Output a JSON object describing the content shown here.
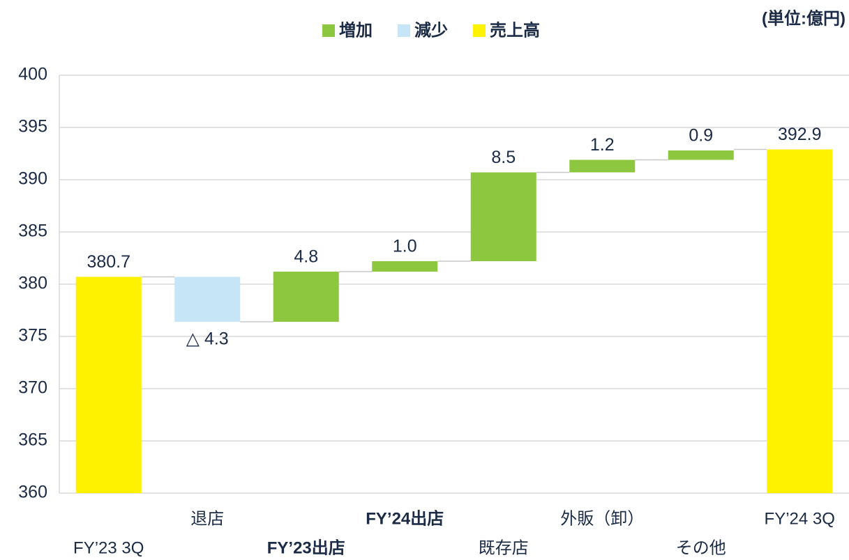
{
  "chart_data": {
    "type": "waterfall",
    "unit_label": "(単位:億円)",
    "categories": [
      "FY’23 3Q",
      "退店",
      "FY’23出店",
      "FY’24出店",
      "既存店",
      "外販（卸）",
      "その他",
      "FY’24 3Q"
    ],
    "series": [
      {
        "name": "増加",
        "color": "#8dc63f",
        "values": [
          null,
          null,
          4.8,
          1.0,
          8.5,
          1.2,
          0.9,
          null
        ],
        "value_labels": [
          null,
          null,
          "4.8",
          "1.0",
          "8.5",
          "1.2",
          "0.9",
          null
        ]
      },
      {
        "name": "減少",
        "color": "#c6e6f8",
        "values": [
          null,
          -4.3,
          null,
          null,
          null,
          null,
          null,
          null
        ],
        "value_labels": [
          null,
          "△ 4.3",
          null,
          null,
          null,
          null,
          null,
          null
        ]
      },
      {
        "name": "売上高",
        "color": "#fff200",
        "values": [
          380.7,
          null,
          null,
          null,
          null,
          null,
          null,
          392.9
        ],
        "value_labels": [
          "380.7",
          null,
          null,
          null,
          null,
          null,
          null,
          "392.9"
        ]
      }
    ],
    "ylim": [
      360,
      400
    ],
    "yticks": [
      360,
      365,
      370,
      375,
      380,
      385,
      390,
      395,
      400
    ],
    "grid": true
  }
}
